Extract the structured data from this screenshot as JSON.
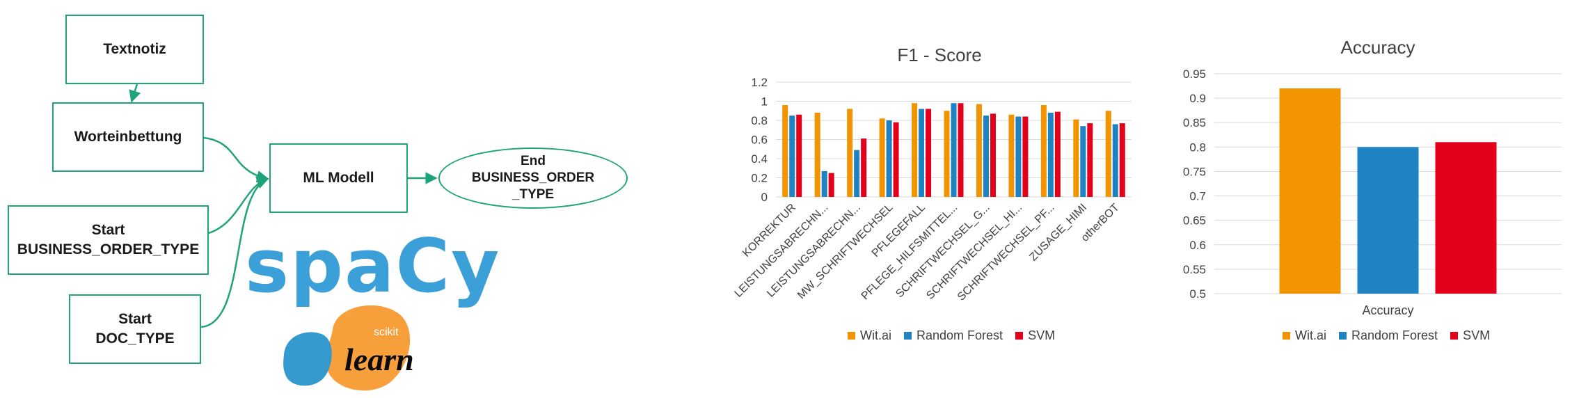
{
  "diagram": {
    "nodes": {
      "textnotiz": "Textnotiz",
      "worteinbettung": "Worteinbettung",
      "start_bot": "Start\nBUSINESS_ORDER_TYPE",
      "start_doc": "Start\nDOC_TYPE",
      "ml_modell": "ML Modell",
      "end_bot": "End\nBUSINESS_ORDER\n_TYPE"
    },
    "edge_color": "#1fa37a"
  },
  "logos": {
    "spacy": "spaCy",
    "scikit_small": "scikit",
    "scikit_big": "learn",
    "colors": {
      "spacy": "#3b9fd8",
      "sk_orange": "#f7a03b",
      "sk_blue": "#3499cd"
    }
  },
  "colors": {
    "wit": "#f29400",
    "rf": "#1f83c3",
    "svm": "#e3001b"
  },
  "legend": [
    "Wit.ai",
    "Random Forest",
    "SVM"
  ],
  "chart_data": [
    {
      "type": "bar",
      "title": "F1 - Score",
      "categories": [
        "KORREKTUR",
        "LEISTUNGSABRECHN...",
        "LEISTUNGSABRECHN...",
        "MW_SCHRIFTWECHSEL",
        "PFLEGEFALL",
        "PFLEGE_HILFSMITTEL...",
        "SCHRIFTWECHSEL_G...",
        "SCHRIFTWECHSEL_HI...",
        "SCHRIFTWECHSEL_PF...",
        "ZUSAGE_HIMI",
        "otherBOT"
      ],
      "series": [
        {
          "name": "Wit.ai",
          "values": [
            0.96,
            0.88,
            0.92,
            0.82,
            0.98,
            0.9,
            0.97,
            0.86,
            0.96,
            0.81,
            0.9
          ]
        },
        {
          "name": "Random Forest",
          "values": [
            0.85,
            0.27,
            0.49,
            0.8,
            0.92,
            0.98,
            0.85,
            0.84,
            0.88,
            0.74,
            0.76
          ]
        },
        {
          "name": "SVM",
          "values": [
            0.86,
            0.25,
            0.61,
            0.78,
            0.92,
            0.98,
            0.87,
            0.84,
            0.89,
            0.77,
            0.77
          ]
        }
      ],
      "yticks": [
        "0",
        "0.2",
        "0.4",
        "0.6",
        "0.8",
        "1",
        "1.2"
      ],
      "ylim": [
        0,
        1.2
      ],
      "grid": true,
      "legend_position": "bottom"
    },
    {
      "type": "bar",
      "title": "Accuracy",
      "categories": [
        "Accuracy"
      ],
      "series": [
        {
          "name": "Wit.ai",
          "values": [
            0.92
          ]
        },
        {
          "name": "Random Forest",
          "values": [
            0.8
          ]
        },
        {
          "name": "SVM",
          "values": [
            0.81
          ]
        }
      ],
      "yticks": [
        "0.5",
        "0.55",
        "0.6",
        "0.65",
        "0.7",
        "0.75",
        "0.8",
        "0.85",
        "0.9",
        "0.95"
      ],
      "ylim": [
        0.5,
        0.95
      ],
      "grid": true,
      "legend_position": "bottom"
    }
  ]
}
